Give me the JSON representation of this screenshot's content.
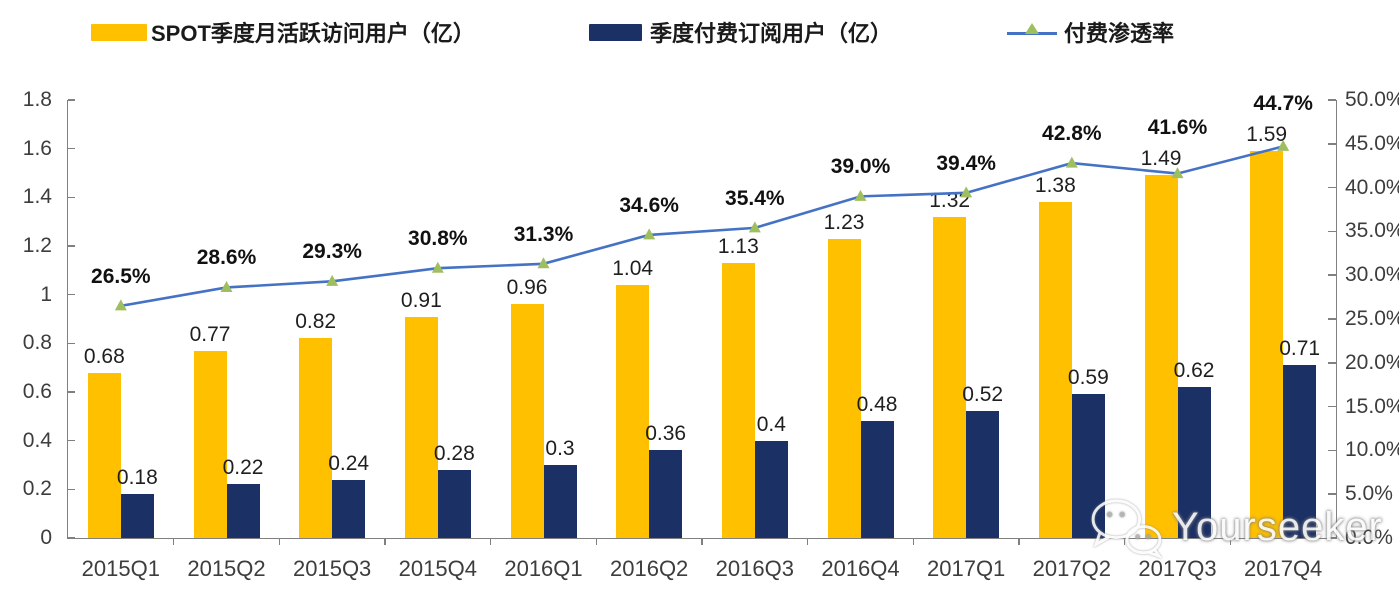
{
  "legend": {
    "mau": {
      "label": "SPOT季度月活跃访问用户（亿）",
      "color": "#FFC000"
    },
    "subs": {
      "label": "季度付费订阅用户（亿）",
      "color": "#1B3064"
    },
    "penetration": {
      "label": "付费渗透率",
      "line_color": "#4472C4",
      "marker_color": "#9FBF5F"
    }
  },
  "watermark": {
    "text": "Yourseeker",
    "icon": "wechat-icon"
  },
  "chart_data": {
    "type": "bar",
    "subtype": "grouped bars + line overlay (combo)",
    "categories": [
      "2015Q1",
      "2015Q2",
      "2015Q3",
      "2015Q4",
      "2016Q1",
      "2016Q2",
      "2016Q3",
      "2016Q4",
      "2017Q1",
      "2017Q2",
      "2017Q3",
      "2017Q4"
    ],
    "series": [
      {
        "name": "SPOT季度月活跃访问用户（亿）",
        "type": "bar",
        "axis": "left",
        "color": "#FFC000",
        "values": [
          0.68,
          0.77,
          0.82,
          0.91,
          0.96,
          1.04,
          1.13,
          1.23,
          1.32,
          1.38,
          1.49,
          1.59
        ],
        "labels": [
          "0.68",
          "0.77",
          "0.82",
          "0.91",
          "0.96",
          "1.04",
          "1.13",
          "1.23",
          "1.32",
          "1.38",
          "1.49",
          "1.59"
        ]
      },
      {
        "name": "季度付费订阅用户（亿）",
        "type": "bar",
        "axis": "left",
        "color": "#1B3064",
        "values": [
          0.18,
          0.22,
          0.24,
          0.28,
          0.3,
          0.36,
          0.4,
          0.48,
          0.52,
          0.59,
          0.62,
          0.71
        ],
        "labels": [
          "0.18",
          "0.22",
          "0.24",
          "0.28",
          "0.3",
          "0.36",
          "0.4",
          "0.48",
          "0.52",
          "0.59",
          "0.62",
          "0.71"
        ]
      },
      {
        "name": "付费渗透率",
        "type": "line",
        "axis": "right",
        "color": "#4472C4",
        "marker": "triangle",
        "marker_color": "#9FBF5F",
        "values": [
          26.5,
          28.6,
          29.3,
          30.8,
          31.3,
          34.6,
          35.4,
          39.0,
          39.4,
          42.8,
          41.6,
          44.7
        ],
        "labels": [
          "26.5%",
          "28.6%",
          "29.3%",
          "30.8%",
          "31.3%",
          "34.6%",
          "35.4%",
          "39.0%",
          "39.4%",
          "42.8%",
          "41.6%",
          "44.7%"
        ]
      }
    ],
    "axes": {
      "left": {
        "min": 0,
        "max": 1.8,
        "step": 0.2,
        "tick_labels": [
          "0",
          "0.2",
          "0.4",
          "0.6",
          "0.8",
          "1",
          "1.2",
          "1.4",
          "1.6",
          "1.8"
        ]
      },
      "right": {
        "min": 0,
        "max": 50,
        "step": 5,
        "tick_labels": [
          "0.0%",
          "5.0%",
          "10.0%",
          "15.0%",
          "20.0%",
          "25.0%",
          "30.0%",
          "35.0%",
          "40.0%",
          "45.0%",
          "50.0%"
        ]
      }
    },
    "grid": false,
    "legend_position": "top",
    "background": "#FFFFFF"
  }
}
